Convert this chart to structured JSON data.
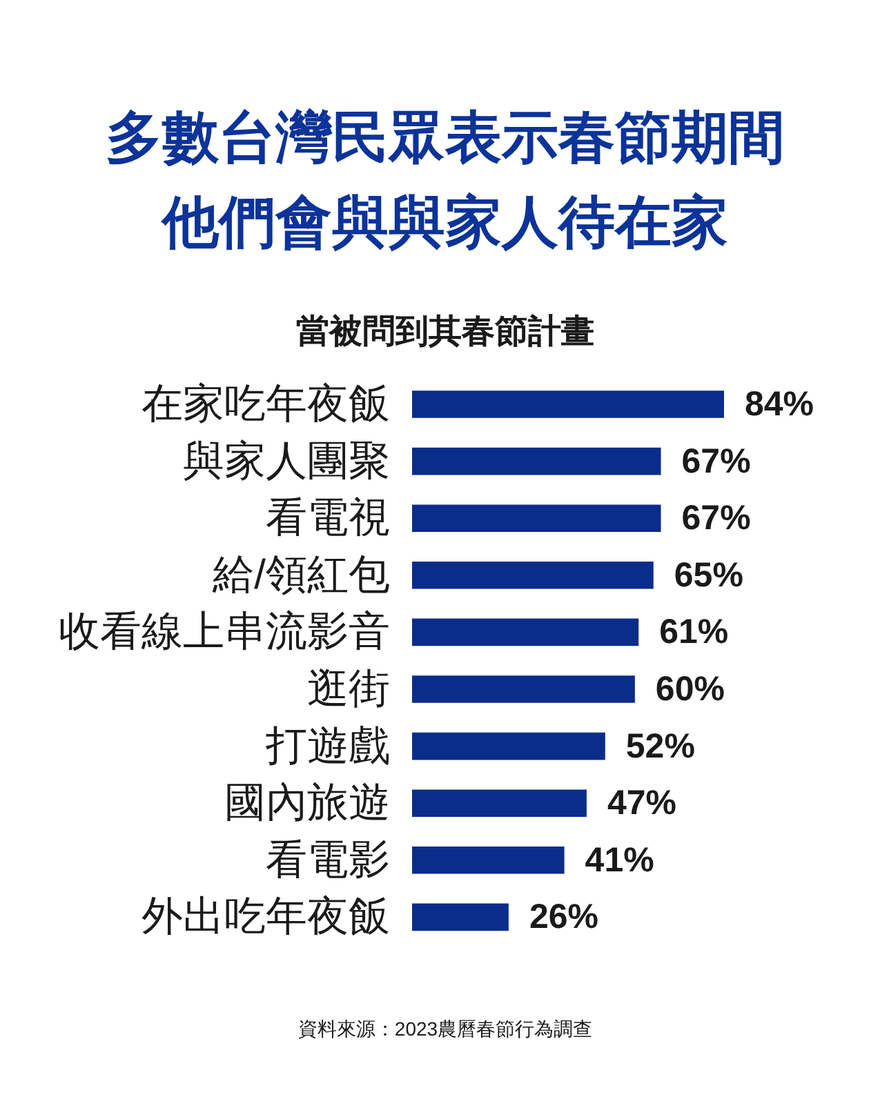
{
  "chart_data": {
    "type": "bar",
    "orientation": "horizontal",
    "title": "多數台灣民眾表示春節期間他們會與與家人待在家",
    "subtitle": "當被問到其春節計畫",
    "categories": [
      "在家吃年夜飯",
      "與家人團聚",
      "看電視",
      "給/領紅包",
      "收看線上串流影音",
      "逛街",
      "打遊戲",
      "國內旅遊",
      "看電影",
      "外出吃年夜飯"
    ],
    "values": [
      84,
      67,
      67,
      65,
      61,
      60,
      52,
      47,
      41,
      26
    ],
    "value_labels": [
      "84%",
      "67%",
      "67%",
      "65%",
      "61%",
      "60%",
      "52%",
      "47%",
      "41%",
      "26%"
    ],
    "color": "#0a2d8c",
    "tick_labels": "y",
    "annotations": [
      "資料來源：2023農曆春節行為調查"
    ]
  }
}
